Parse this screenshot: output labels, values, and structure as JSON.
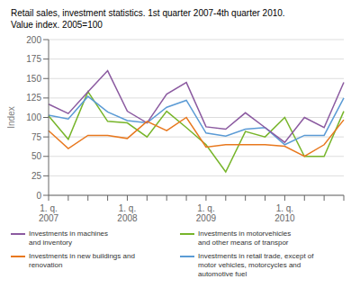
{
  "chart_data": {
    "type": "line",
    "title": "Retail sales, investment statistics. 1st quarter 2007-4th quarter 2010.",
    "subtitle": "Value index. 2005=100",
    "y_label": "Index",
    "categories": [
      "1. q.\n2007",
      null,
      null,
      null,
      "1. q.\n2008",
      null,
      null,
      null,
      "1. q.\n2009",
      null,
      null,
      null,
      "1. q.\n2010",
      null,
      null,
      null
    ],
    "ylim": [
      0,
      200
    ],
    "yticks": [
      0,
      25,
      50,
      75,
      100,
      125,
      150,
      175,
      200
    ],
    "grid": true,
    "legend": "bottom",
    "series": [
      {
        "name": "Investments in motorvehicles\nand other means of transpor",
        "color": "#77b52a",
        "values": [
          102,
          72,
          133,
          95,
          93,
          75,
          108,
          87,
          65,
          30,
          82,
          75,
          100,
          50,
          50,
          108
        ]
      },
      {
        "name": "Investments in retail trade, except of\nmotor vehicles, motorcycles and\nautomotive fuel",
        "color": "#5b9bd5",
        "values": [
          103,
          98,
          127,
          107,
          96,
          93,
          113,
          122,
          80,
          76,
          85,
          87,
          65,
          77,
          77,
          125
        ]
      },
      {
        "name": "Investments in machines\nand inventory",
        "color": "#8b5aa0",
        "values": [
          117,
          105,
          133,
          160,
          108,
          93,
          130,
          145,
          88,
          85,
          106,
          87,
          68,
          100,
          87,
          145
        ]
      },
      {
        "name": "Investments in new buildings and\nrenovation",
        "color": "#e8781e",
        "values": [
          83,
          60,
          77,
          77,
          73,
          95,
          83,
          100,
          62,
          65,
          65,
          65,
          63,
          50,
          65,
          97
        ]
      }
    ]
  }
}
